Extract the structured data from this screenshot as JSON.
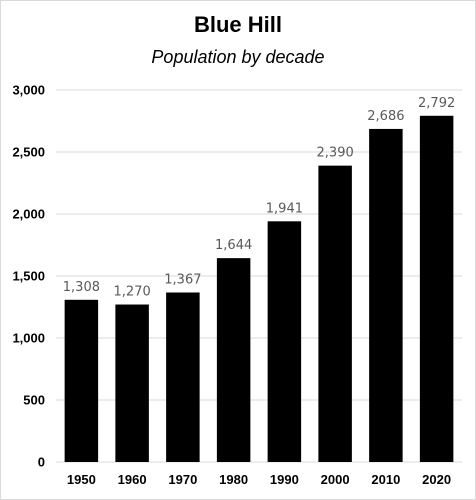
{
  "chart_data": {
    "type": "bar",
    "title": "Blue Hill",
    "subtitle": "Population by decade",
    "xlabel": "",
    "ylabel": "",
    "categories": [
      "1950",
      "1960",
      "1970",
      "1980",
      "1990",
      "2000",
      "2010",
      "2020"
    ],
    "values": [
      1308,
      1270,
      1367,
      1644,
      1941,
      2390,
      2686,
      2792
    ],
    "value_labels": [
      "1,308",
      "1,270",
      "1,367",
      "1,644",
      "1,941",
      "2,390",
      "2,686",
      "2,792"
    ],
    "ylim": [
      0,
      3000
    ],
    "yticks": [
      0,
      500,
      1000,
      1500,
      2000,
      2500,
      3000
    ],
    "ytick_labels": [
      "0",
      "500",
      "1,000",
      "1,500",
      "2,000",
      "2,500",
      "3,000"
    ],
    "grid": true,
    "legend": "none",
    "colors": {
      "bar": "#000000",
      "grid": "#d9d9d9",
      "data_label": "#595959"
    }
  }
}
